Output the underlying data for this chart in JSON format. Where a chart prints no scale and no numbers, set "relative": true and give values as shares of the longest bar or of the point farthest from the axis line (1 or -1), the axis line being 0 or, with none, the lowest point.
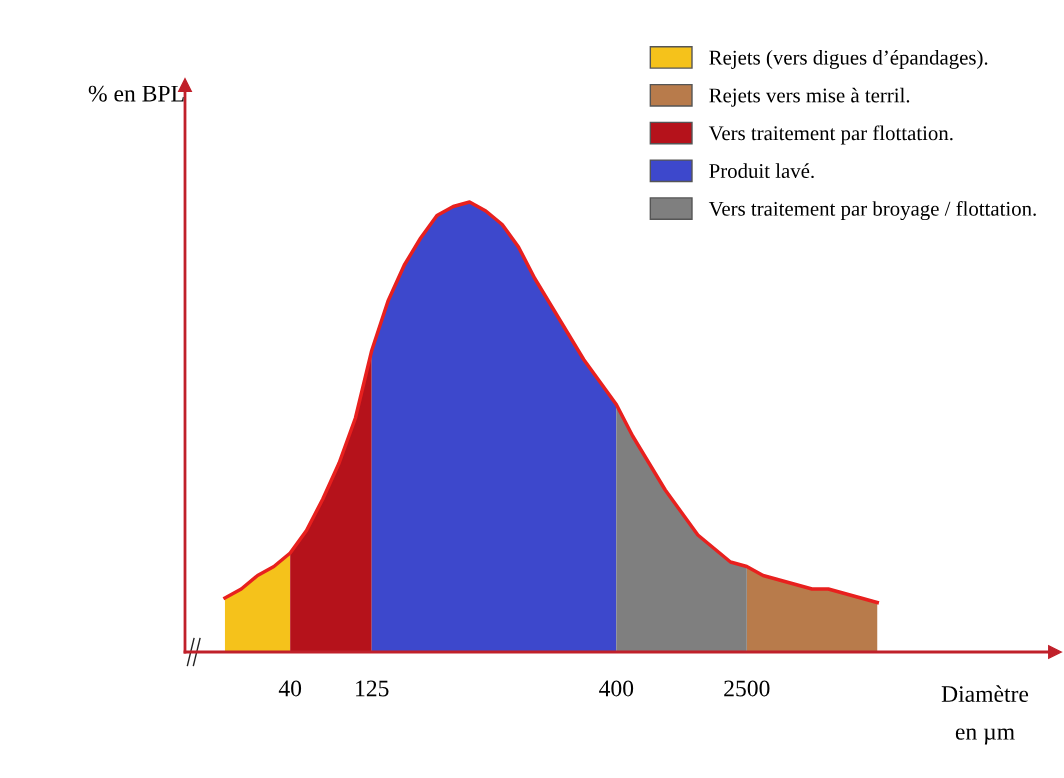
{
  "chart_data": {
    "type": "area",
    "relative": true,
    "tick_labels": "x",
    "grid": false,
    "legend": "top right",
    "ylabel": "% en BPL",
    "xlabel": "Diamètre\nen µm",
    "categories": [
      null,
      null,
      null,
      null,
      "40",
      null,
      null,
      null,
      null,
      "125",
      null,
      null,
      null,
      null,
      null,
      null,
      null,
      null,
      null,
      null,
      null,
      null,
      null,
      null,
      "400",
      null,
      null,
      null,
      null,
      null,
      null,
      null,
      "2500",
      null,
      null,
      null,
      null,
      null,
      null,
      null,
      null
    ],
    "series": [
      {
        "name": "Rejets (vers digues d’épandages).",
        "color": "#f5c21b",
        "values": [
          0.12,
          0.14,
          0.17,
          0.19,
          0.22,
          null,
          null,
          null,
          null,
          null,
          null,
          null,
          null,
          null,
          null,
          null,
          null,
          null,
          null,
          null,
          null,
          null,
          null,
          null,
          null,
          null,
          null,
          null,
          null,
          null,
          null,
          null,
          null,
          null,
          null,
          null,
          null,
          null,
          null,
          null,
          null
        ]
      },
      {
        "name": "Rejets vers mise à terril.",
        "color": "#b87b4b",
        "values": [
          null,
          null,
          null,
          null,
          null,
          null,
          null,
          null,
          null,
          null,
          null,
          null,
          null,
          null,
          null,
          null,
          null,
          null,
          null,
          null,
          null,
          null,
          null,
          null,
          null,
          null,
          null,
          null,
          null,
          null,
          null,
          null,
          0.19,
          0.17,
          0.16,
          0.15,
          0.14,
          0.14,
          0.13,
          0.12,
          0.11
        ]
      },
      {
        "name": "Vers traitement par flottation.",
        "color": "#b5121b",
        "values": [
          null,
          null,
          null,
          null,
          0.22,
          0.27,
          0.34,
          0.42,
          0.52,
          0.67,
          null,
          null,
          null,
          null,
          null,
          null,
          null,
          null,
          null,
          null,
          null,
          null,
          null,
          null,
          null,
          null,
          null,
          null,
          null,
          null,
          null,
          null,
          null,
          null,
          null,
          null,
          null,
          null,
          null,
          null,
          null
        ]
      },
      {
        "name": "Produit lavé.",
        "color": "#3d48cc",
        "values": [
          null,
          null,
          null,
          null,
          null,
          null,
          null,
          null,
          null,
          0.67,
          0.78,
          0.86,
          0.92,
          0.97,
          0.99,
          1.0,
          0.98,
          0.95,
          0.9,
          0.83,
          0.77,
          0.71,
          0.65,
          0.6,
          0.55,
          null,
          null,
          null,
          null,
          null,
          null,
          null,
          null,
          null,
          null,
          null,
          null,
          null,
          null,
          null,
          null
        ]
      },
      {
        "name": "Vers traitement par broyage / flottation.",
        "color": "#7f7f7f",
        "values": [
          null,
          null,
          null,
          null,
          null,
          null,
          null,
          null,
          null,
          null,
          null,
          null,
          null,
          null,
          null,
          null,
          null,
          null,
          null,
          null,
          null,
          null,
          null,
          null,
          0.55,
          0.48,
          0.42,
          0.36,
          0.31,
          0.26,
          0.23,
          0.2,
          0.19,
          null,
          null,
          null,
          null,
          null,
          null,
          null,
          null
        ]
      },
      {
        "type": "line",
        "color": "#e8201e",
        "values": [
          0.12,
          0.14,
          0.17,
          0.19,
          0.22,
          0.27,
          0.34,
          0.42,
          0.52,
          0.67,
          0.78,
          0.86,
          0.92,
          0.97,
          0.99,
          1.0,
          0.98,
          0.95,
          0.9,
          0.83,
          0.77,
          0.71,
          0.65,
          0.6,
          0.55,
          0.48,
          0.42,
          0.36,
          0.31,
          0.26,
          0.23,
          0.2,
          0.19,
          0.17,
          0.16,
          0.15,
          0.14,
          0.14,
          0.13,
          0.12,
          0.11
        ]
      }
    ]
  }
}
